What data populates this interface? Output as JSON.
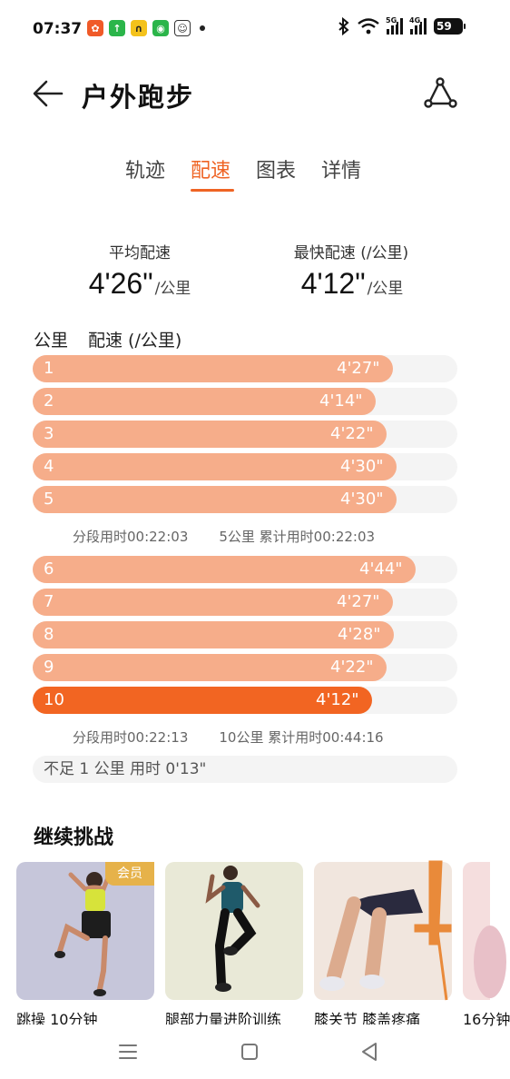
{
  "status_bar": {
    "time": "07:37",
    "battery": "59",
    "signal_tags": [
      "5G",
      "4G"
    ]
  },
  "header": {
    "title": "户外跑步"
  },
  "tabs": [
    {
      "label": "轨迹",
      "active": false
    },
    {
      "label": "配速",
      "active": true
    },
    {
      "label": "图表",
      "active": false
    },
    {
      "label": "详情",
      "active": false
    }
  ],
  "summary": {
    "avg_label": "平均配速",
    "avg_value": "4'26\"",
    "avg_unit": "/公里",
    "fast_label": "最快配速 (/公里)",
    "fast_value": "4'12\"",
    "fast_unit": "/公里"
  },
  "list_header": {
    "km_label": "公里",
    "pace_label": "配速 (/公里)"
  },
  "splits": [
    {
      "km": "1",
      "pace": "4'27\"",
      "fraction": 0.848
    },
    {
      "km": "2",
      "pace": "4'14\"",
      "fraction": 0.808
    },
    {
      "km": "3",
      "pace": "4'22\"",
      "fraction": 0.833
    },
    {
      "km": "4",
      "pace": "4'30\"",
      "fraction": 0.857
    },
    {
      "km": "5",
      "pace": "4'30\"",
      "fraction": 0.857
    },
    {
      "km": "6",
      "pace": "4'44\"",
      "fraction": 0.902
    },
    {
      "km": "7",
      "pace": "4'27\"",
      "fraction": 0.848
    },
    {
      "km": "8",
      "pace": "4'28\"",
      "fraction": 0.851
    },
    {
      "km": "9",
      "pace": "4'22\"",
      "fraction": 0.833
    },
    {
      "km": "10",
      "pace": "4'12\"",
      "fraction": 0.8,
      "highlight": true
    }
  ],
  "segments": [
    {
      "segment_time": "分段用时00:22:03",
      "cumulative": "5公里 累计用时00:22:03"
    },
    {
      "segment_time": "分段用时00:22:13",
      "cumulative": "10公里 累计用时00:44:16"
    }
  ],
  "remainder": "不足 1 公里 用时 0'13\"",
  "challenge": {
    "title": "继续挑战",
    "vip_badge": "会员",
    "cards": [
      {
        "title": "跳操 10分钟"
      },
      {
        "title": "腿部力量进阶训练"
      },
      {
        "title": "膝关节 膝盖疼痛"
      },
      {
        "title": "16分钟"
      }
    ]
  },
  "colors": {
    "accent": "#ef6424",
    "bar": "#f6ad8a",
    "bar_highlight": "#f26522"
  }
}
